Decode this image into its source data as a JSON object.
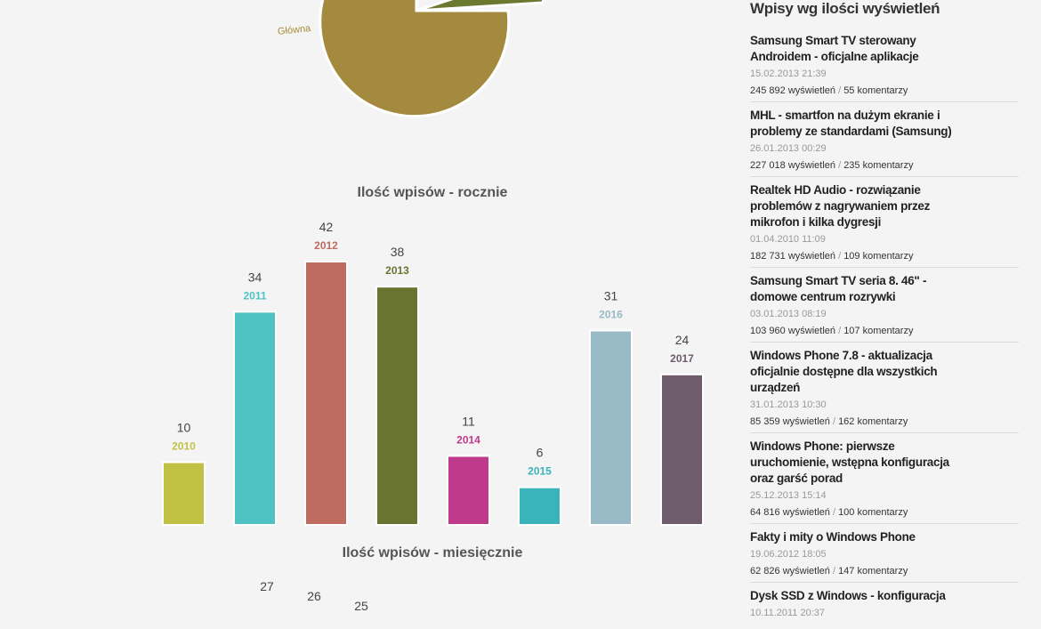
{
  "pie": {
    "label": "Główna",
    "main_color": "#a48a3e",
    "slice_color": "#6b7a30"
  },
  "yearly_title": "Ilość wpisów - rocznie",
  "monthly_title": "Ilość wpisów - miesięcznie",
  "chart_data": [
    {
      "type": "bar",
      "title": "Ilość wpisów - rocznie",
      "categories": [
        "2010",
        "2011",
        "2012",
        "2013",
        "2014",
        "2015",
        "2016",
        "2017"
      ],
      "values": [
        10,
        34,
        42,
        38,
        11,
        6,
        31,
        24
      ],
      "colors": [
        "#c1c144",
        "#4fc3c3",
        "#bf6b60",
        "#6a7431",
        "#bf3a8a",
        "#3ab3bb",
        "#98bac6",
        "#6e5c6c"
      ],
      "ylim": [
        0,
        42
      ],
      "grid": false
    },
    {
      "type": "bar",
      "title": "Ilość wpisów - miesięcznie",
      "values": [
        27,
        26,
        25
      ]
    }
  ],
  "sidebar": {
    "title": "Wpisy wg ilości wyświetleń",
    "views_suffix": "wyświetleń",
    "comments_suffix": "komentarzy",
    "posts": [
      {
        "title": "Samsung Smart TV sterowany Androidem - oficjalne aplikacje",
        "date": "15.02.2013 21:39",
        "views": "245 892",
        "comments": "55"
      },
      {
        "title": "MHL - smartfon na dużym ekranie i problemy ze standardami (Samsung)",
        "date": "26.01.2013 00:29",
        "views": "227 018",
        "comments": "235"
      },
      {
        "title": "Realtek HD Audio - rozwiązanie problemów z nagrywaniem przez mikrofon i kilka dygresji",
        "date": "01.04.2010 11:09",
        "views": "182 731",
        "comments": "109"
      },
      {
        "title": "Samsung Smart TV seria 8. 46\" - domowe centrum rozrywki",
        "date": "03.01.2013 08:19",
        "views": "103 960",
        "comments": "107"
      },
      {
        "title": "Windows Phone 7.8 - aktualizacja oficjalnie dostępne dla wszystkich urządzeń",
        "date": "31.01.2013 10:30",
        "views": "85 359",
        "comments": "162"
      },
      {
        "title": "Windows Phone: pierwsze uruchomienie, wstępna konfiguracja oraz garść porad",
        "date": "25.12.2013 15:14",
        "views": "64 816",
        "comments": "100"
      },
      {
        "title": "Fakty i mity o Windows Phone",
        "date": "19.06.2012 18:05",
        "views": "62 826",
        "comments": "147"
      },
      {
        "title": "Dysk SSD z Windows - konfiguracja",
        "date": "10.11.2011 20:37",
        "views": "",
        "comments": ""
      }
    ]
  }
}
